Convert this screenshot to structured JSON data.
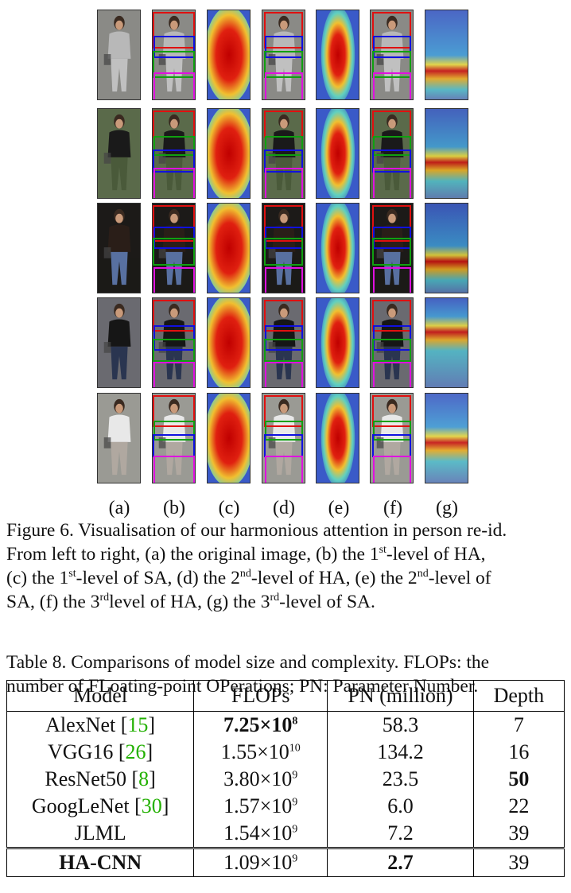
{
  "figure": {
    "column_labels": [
      "(a)",
      "(b)",
      "(c)",
      "(d)",
      "(e)",
      "(f)",
      "(g)"
    ],
    "caption": {
      "l1": "Figure 6. Visualisation of our harmonious attention in person re-id.",
      "l2a": "From left to right, (a) the original image, (b) the 1",
      "sup_st": "st",
      "l2b": "-level of HA,",
      "l3a": "(c) the 1",
      "l3b": "-level of SA, (d) the 2",
      "sup_nd": "nd",
      "l3c": "-level of HA, (e) the 2",
      "l3d": "-level of",
      "l4a": "SA, (f) the 3",
      "sup_rd": "rd",
      "l4b": "level of HA, (g) the 3",
      "l4c": "-level of SA."
    }
  },
  "table": {
    "caption_l1": "Table 8.  Comparisons of model size and complexity. FLOPs: the",
    "caption_l2": "number of FLoating-point OPerations; PN: Parameter Number.",
    "headers": [
      "Model",
      "FLOPs",
      "PN (million)",
      "Depth"
    ],
    "rows": [
      {
        "model": "AlexNet",
        "ref": "15",
        "flops_mant": "7.25",
        "flops_exp": "8",
        "pn": "58.3",
        "depth": "7"
      },
      {
        "model": "VGG16",
        "ref": "26",
        "flops_mant": "1.55",
        "flops_exp": "10",
        "pn": "134.2",
        "depth": "16"
      },
      {
        "model": "ResNet50",
        "ref": "8",
        "flops_mant": "3.80",
        "flops_exp": "9",
        "pn": "23.5",
        "depth": "50"
      },
      {
        "model": "GoogLeNet",
        "ref": "30",
        "flops_mant": "1.57",
        "flops_exp": "9",
        "pn": "6.0",
        "depth": "22"
      },
      {
        "model": "JLML",
        "ref": "",
        "flops_mant": "1.54",
        "flops_exp": "9",
        "pn": "7.2",
        "depth": "39"
      },
      {
        "model": "HA-CNN",
        "ref": "",
        "flops_mant": "1.09",
        "flops_exp": "9",
        "pn": "2.7",
        "depth": "39"
      }
    ],
    "times_sign": "×10"
  },
  "colors": {
    "red": "#e01010",
    "green": "#10a010",
    "blue": "#1010e0",
    "magenta": "#e010e0",
    "citation": "#22b000"
  }
}
